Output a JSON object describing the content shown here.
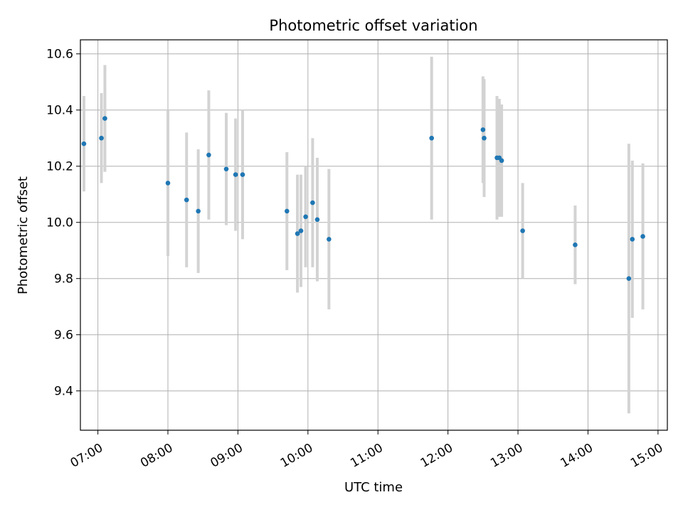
{
  "chart_data": {
    "type": "scatter",
    "title": "Photometric offset variation",
    "xlabel": "UTC time",
    "ylabel": "Photometric offset",
    "xlim": [
      "06:45",
      "15:08"
    ],
    "ylim": [
      9.26,
      10.65
    ],
    "x_ticks": [
      "07:00",
      "08:00",
      "09:00",
      "10:00",
      "11:00",
      "12:00",
      "13:00",
      "14:00",
      "15:00"
    ],
    "y_ticks": [
      "9.4",
      "9.6",
      "9.8",
      "10.0",
      "10.2",
      "10.4",
      "10.6"
    ],
    "grid": true,
    "marker_color": "#1f77b4",
    "errorbar_color": "#d3d3d3",
    "points": [
      {
        "x": "06:48",
        "y": 10.28,
        "err": 0.17
      },
      {
        "x": "07:03",
        "y": 10.3,
        "err": 0.16
      },
      {
        "x": "07:06",
        "y": 10.37,
        "err": 0.19
      },
      {
        "x": "08:00",
        "y": 10.14,
        "err": 0.26
      },
      {
        "x": "08:16",
        "y": 10.08,
        "err": 0.24
      },
      {
        "x": "08:26",
        "y": 10.04,
        "err": 0.22
      },
      {
        "x": "08:35",
        "y": 10.24,
        "err": 0.23
      },
      {
        "x": "08:50",
        "y": 10.19,
        "err": 0.2
      },
      {
        "x": "08:58",
        "y": 10.17,
        "err": 0.2
      },
      {
        "x": "09:04",
        "y": 10.17,
        "err": 0.23
      },
      {
        "x": "09:42",
        "y": 10.04,
        "err": 0.21
      },
      {
        "x": "09:51",
        "y": 9.96,
        "err": 0.21
      },
      {
        "x": "09:54",
        "y": 9.97,
        "err": 0.2
      },
      {
        "x": "09:58",
        "y": 10.02,
        "err": 0.18
      },
      {
        "x": "10:04",
        "y": 10.07,
        "err": 0.23
      },
      {
        "x": "10:08",
        "y": 10.01,
        "err": 0.22
      },
      {
        "x": "10:18",
        "y": 9.94,
        "err": 0.25
      },
      {
        "x": "11:46",
        "y": 10.3,
        "err": 0.29
      },
      {
        "x": "12:30",
        "y": 10.33,
        "err": 0.19
      },
      {
        "x": "12:31",
        "y": 10.3,
        "err": 0.21
      },
      {
        "x": "12:42",
        "y": 10.23,
        "err": 0.22
      },
      {
        "x": "12:44",
        "y": 10.23,
        "err": 0.21
      },
      {
        "x": "12:46",
        "y": 10.22,
        "err": 0.2
      },
      {
        "x": "13:04",
        "y": 9.97,
        "err": 0.17
      },
      {
        "x": "13:49",
        "y": 9.92,
        "err": 0.14
      },
      {
        "x": "14:35",
        "y": 9.8,
        "err": 0.48
      },
      {
        "x": "14:38",
        "y": 9.94,
        "err": 0.28
      },
      {
        "x": "14:47",
        "y": 9.95,
        "err": 0.26
      }
    ]
  }
}
